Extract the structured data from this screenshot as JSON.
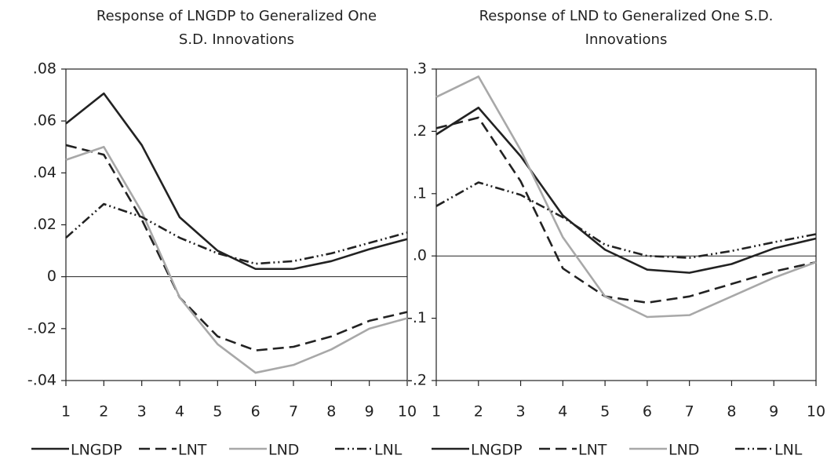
{
  "chart_data": [
    {
      "type": "line",
      "title": "Response of LNGDP to Generalized One S.D. Innovations",
      "x": [
        1,
        2,
        3,
        4,
        5,
        6,
        7,
        8,
        9,
        10
      ],
      "xlim": [
        1,
        10
      ],
      "xticks": [
        1,
        2,
        3,
        4,
        5,
        6,
        7,
        8,
        9,
        10
      ],
      "ylim": [
        -0.04,
        0.08
      ],
      "yticks": [
        {
          "value": -0.04,
          "label": "-.04"
        },
        {
          "value": -0.02,
          "label": "-.02"
        },
        0,
        {
          "value": 0.02,
          "label": ".02"
        },
        {
          "value": 0.04,
          "label": ".04"
        },
        {
          "value": 0.06,
          "label": ".06"
        },
        {
          "value": 0.08,
          "label": ".08"
        }
      ],
      "grid": false,
      "series": [
        {
          "name": "LNGDP",
          "color": "#222222",
          "dash": "solid",
          "values": [
            0.059,
            0.0706,
            0.0507,
            0.0229,
            0.01,
            0.003,
            0.003,
            0.006,
            0.0106,
            0.0145
          ]
        },
        {
          "name": "LNT",
          "color": "#222222",
          "dash": "dashed",
          "values": [
            0.0507,
            0.047,
            0.022,
            -0.008,
            -0.023,
            -0.0284,
            -0.027,
            -0.023,
            -0.017,
            -0.0136
          ]
        },
        {
          "name": "LND",
          "color": "#a8a8a8",
          "dash": "solid",
          "values": [
            0.045,
            0.05,
            0.025,
            -0.008,
            -0.026,
            -0.037,
            -0.034,
            -0.028,
            -0.02,
            -0.016
          ]
        },
        {
          "name": "LNL",
          "color": "#222222",
          "dash": "dash-dot-dot",
          "values": [
            0.015,
            0.028,
            0.023,
            0.015,
            0.009,
            0.005,
            0.006,
            0.009,
            0.013,
            0.017
          ]
        }
      ]
    },
    {
      "type": "line",
      "title": "Response of LND to Generalized One S.D. Innovations",
      "x": [
        1,
        2,
        3,
        4,
        5,
        6,
        7,
        8,
        9,
        10
      ],
      "xlim": [
        1,
        10
      ],
      "xticks": [
        1,
        2,
        3,
        4,
        5,
        6,
        7,
        8,
        9,
        10
      ],
      "ylim": [
        -0.2,
        0.3
      ],
      "yticks": [
        {
          "value": -0.2,
          "label": "-.2"
        },
        {
          "value": -0.1,
          "label": "-.1"
        },
        {
          "value": 0,
          "label": ".0"
        },
        {
          "value": 0.1,
          "label": ".1"
        },
        {
          "value": 0.2,
          "label": ".2"
        },
        {
          "value": 0.3,
          "label": ".3"
        }
      ],
      "grid": false,
      "series": [
        {
          "name": "LNGDP",
          "color": "#222222",
          "dash": "solid",
          "values": [
            0.195,
            0.238,
            0.16,
            0.065,
            0.01,
            -0.022,
            -0.027,
            -0.013,
            0.012,
            0.028
          ]
        },
        {
          "name": "LNT",
          "color": "#222222",
          "dash": "dashed",
          "values": [
            0.205,
            0.222,
            0.12,
            -0.02,
            -0.065,
            -0.075,
            -0.065,
            -0.045,
            -0.025,
            -0.01
          ]
        },
        {
          "name": "LND",
          "color": "#a8a8a8",
          "dash": "solid",
          "values": [
            0.255,
            0.288,
            0.17,
            0.03,
            -0.065,
            -0.098,
            -0.095,
            -0.065,
            -0.035,
            -0.01
          ]
        },
        {
          "name": "LNL",
          "color": "#222222",
          "dash": "dash-dot-dot",
          "values": [
            0.08,
            0.118,
            0.098,
            0.062,
            0.018,
            0,
            -0.003,
            0.008,
            0.022,
            0.035
          ]
        }
      ]
    }
  ]
}
